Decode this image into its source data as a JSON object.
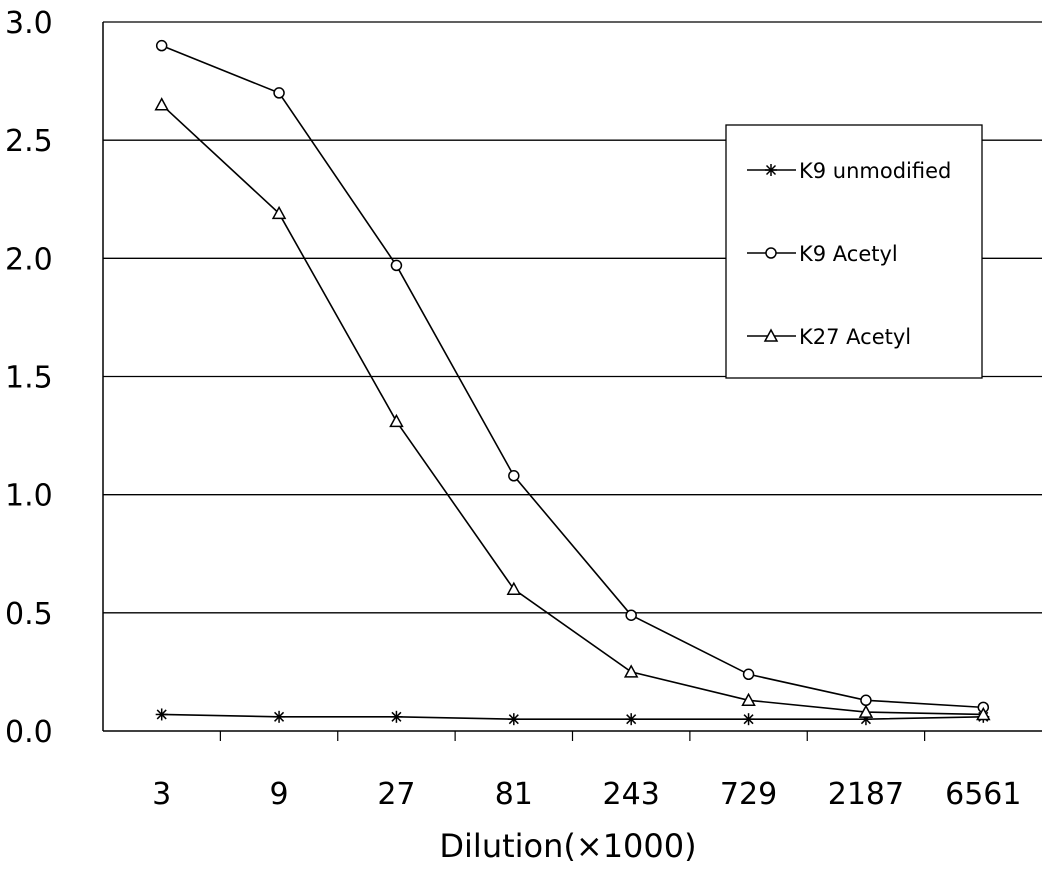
{
  "chart_data": {
    "type": "line",
    "title": "",
    "xlabel": "Dilution(×1000)",
    "ylabel": "",
    "categories": [
      "3",
      "9",
      "27",
      "81",
      "243",
      "729",
      "2187",
      "6561"
    ],
    "ylim": [
      0,
      3.0
    ],
    "yticks": [
      "0.0",
      "0.5",
      "1.0",
      "1.5",
      "2.0",
      "2.5",
      "3.0"
    ],
    "grid": true,
    "legend_position": "right",
    "series": [
      {
        "name": "K9 unmodified",
        "marker": "asterisk",
        "color": "#000000",
        "values": [
          0.07,
          0.06,
          0.06,
          0.05,
          0.05,
          0.05,
          0.05,
          0.06
        ]
      },
      {
        "name": "K9 Acetyl",
        "marker": "circle",
        "color": "#000000",
        "values": [
          2.9,
          2.7,
          1.97,
          1.08,
          0.49,
          0.24,
          0.13,
          0.1
        ]
      },
      {
        "name": "K27 Acetyl",
        "marker": "triangle",
        "color": "#000000",
        "values": [
          2.65,
          2.19,
          1.31,
          0.6,
          0.25,
          0.13,
          0.08,
          0.07
        ]
      }
    ]
  }
}
